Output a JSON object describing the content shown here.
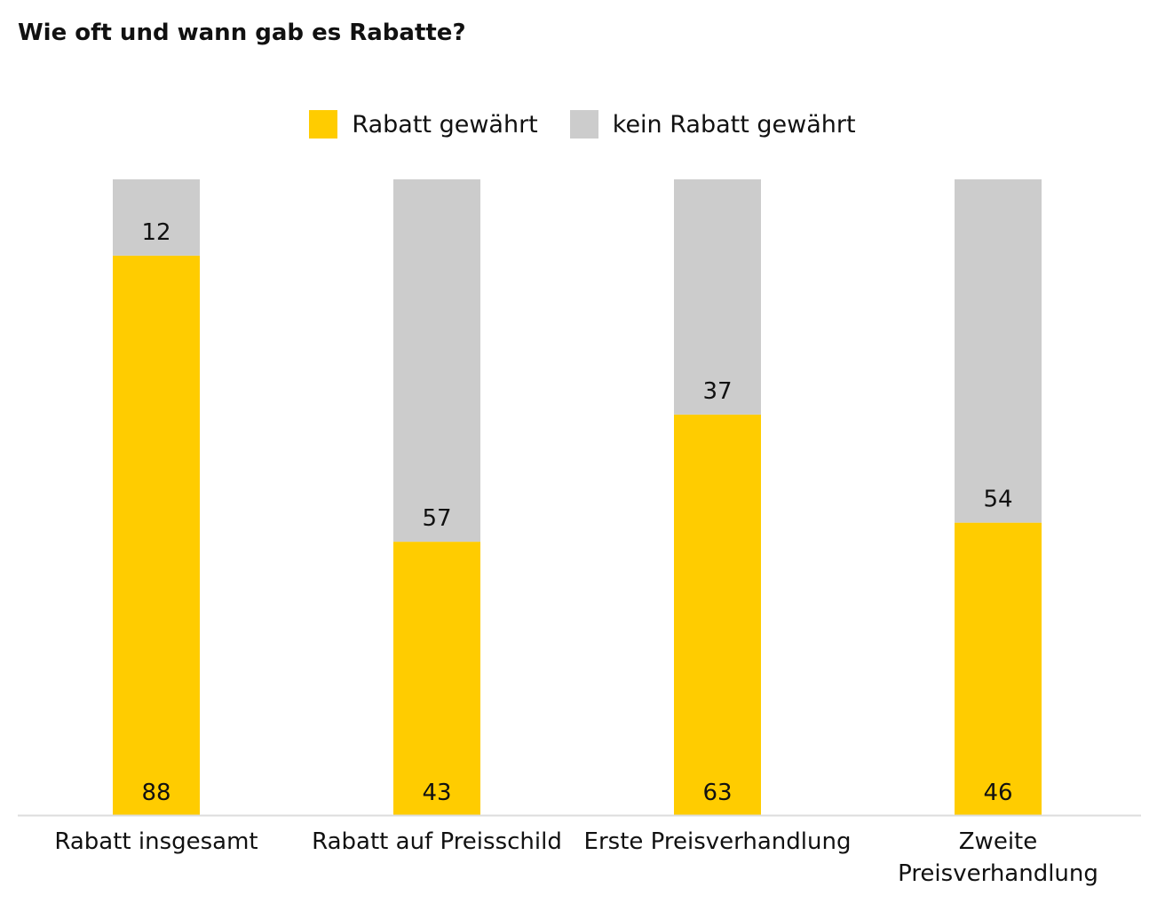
{
  "chart_data": {
    "type": "bar",
    "stacked": true,
    "title": "Wie oft und wann gab es Rabatte?",
    "categories": [
      [
        "Rabatt insgesamt"
      ],
      [
        "Rabatt auf Preisschild"
      ],
      [
        "Erste Preisverhandlung"
      ],
      [
        "Zweite",
        "Preisverhandlung"
      ]
    ],
    "series": [
      {
        "name": "Rabatt gewährt",
        "values": [
          88,
          43,
          63,
          46
        ],
        "color": "#FFCC00"
      },
      {
        "name": "kein Rabatt gewährt",
        "values": [
          12,
          57,
          37,
          54
        ],
        "color": "#CCCCCC"
      }
    ],
    "ylim": [
      0,
      100
    ],
    "grid": false,
    "legend_position": "top-center",
    "xlabel": "",
    "ylabel": ""
  }
}
